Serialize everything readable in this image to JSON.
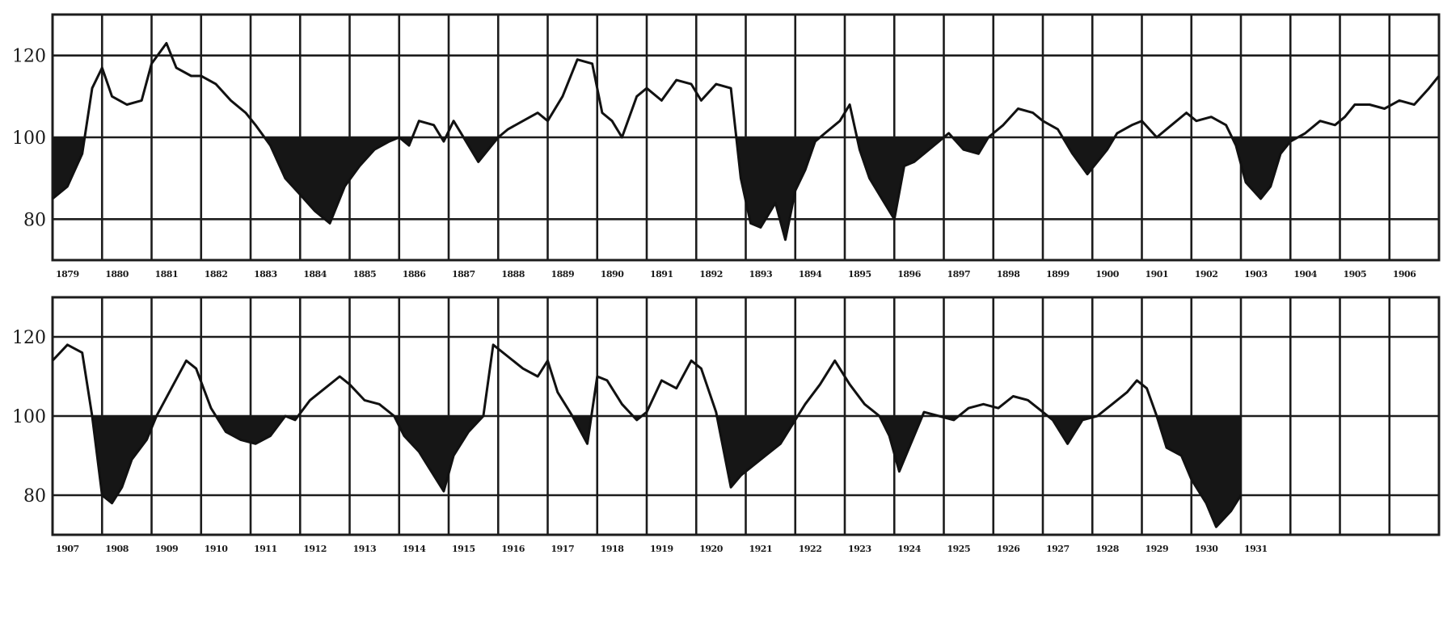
{
  "chart_data": [
    {
      "type": "line",
      "panel": "top",
      "x_start": 1879,
      "x_end": 1907,
      "ylim": [
        70,
        130
      ],
      "yticks": [
        80,
        100,
        120
      ],
      "xtick_labels": [
        "1879",
        "1880",
        "1881",
        "1882",
        "1883",
        "1884",
        "1885",
        "1886",
        "1887",
        "1888",
        "1889",
        "1890",
        "1891",
        "1892",
        "1893",
        "1894",
        "1895",
        "1896",
        "1897",
        "1898",
        "1899",
        "1900",
        "1901",
        "1902",
        "1903",
        "1904",
        "1905",
        "1906"
      ],
      "grid": true,
      "baseline": 100,
      "x": [
        1879.0,
        1879.3,
        1879.6,
        1879.8,
        1880.0,
        1880.2,
        1880.5,
        1880.8,
        1881.0,
        1881.3,
        1881.5,
        1881.8,
        1882.0,
        1882.3,
        1882.6,
        1882.9,
        1883.1,
        1883.4,
        1883.7,
        1884.0,
        1884.3,
        1884.6,
        1884.9,
        1885.2,
        1885.5,
        1885.8,
        1886.0,
        1886.2,
        1886.4,
        1886.7,
        1886.9,
        1887.1,
        1887.3,
        1887.6,
        1887.8,
        1888.0,
        1888.2,
        1888.5,
        1888.8,
        1889.0,
        1889.3,
        1889.6,
        1889.9,
        1890.1,
        1890.3,
        1890.5,
        1890.8,
        1891.0,
        1891.3,
        1891.6,
        1891.9,
        1892.1,
        1892.4,
        1892.7,
        1892.9,
        1893.1,
        1893.3,
        1893.6,
        1893.8,
        1894.0,
        1894.2,
        1894.4,
        1894.6,
        1894.9,
        1895.1,
        1895.3,
        1895.5,
        1895.8,
        1896.0,
        1896.2,
        1896.4,
        1896.7,
        1896.9,
        1897.1,
        1897.4,
        1897.7,
        1897.9,
        1898.2,
        1898.5,
        1898.8,
        1899.0,
        1899.3,
        1899.6,
        1899.9,
        1900.1,
        1900.3,
        1900.5,
        1900.8,
        1901.0,
        1901.3,
        1901.6,
        1901.9,
        1902.1,
        1902.4,
        1902.7,
        1902.9,
        1903.1,
        1903.4,
        1903.6,
        1903.8,
        1904.0,
        1904.3,
        1904.6,
        1904.9,
        1905.1,
        1905.3,
        1905.6,
        1905.9,
        1906.2,
        1906.5,
        1906.8,
        1907.0
      ],
      "values": [
        85,
        88,
        96,
        112,
        117,
        110,
        108,
        109,
        118,
        123,
        117,
        115,
        115,
        113,
        109,
        106,
        103,
        98,
        90,
        86,
        82,
        79,
        88,
        93,
        97,
        99,
        100,
        98,
        104,
        103,
        99,
        104,
        100,
        94,
        97,
        100,
        102,
        104,
        106,
        104,
        110,
        119,
        118,
        106,
        104,
        100,
        110,
        112,
        109,
        114,
        113,
        109,
        113,
        112,
        90,
        79,
        78,
        84,
        75,
        87,
        92,
        99,
        101,
        104,
        108,
        97,
        90,
        84,
        80,
        93,
        94,
        97,
        99,
        101,
        97,
        96,
        100,
        103,
        107,
        106,
        104,
        102,
        96,
        91,
        94,
        97,
        101,
        103,
        104,
        100,
        103,
        106,
        104,
        105,
        103,
        98,
        89,
        85,
        88,
        96,
        99,
        101,
        104,
        103,
        105,
        108,
        108,
        107,
        109,
        108,
        112,
        115
      ]
    },
    {
      "type": "line",
      "panel": "bottom",
      "x_start": 1907,
      "x_end": 1935,
      "ylim": [
        70,
        130
      ],
      "yticks": [
        80,
        100,
        120
      ],
      "xtick_labels": [
        "1907",
        "1908",
        "1909",
        "1910",
        "1911",
        "1912",
        "1913",
        "1914",
        "1915",
        "1916",
        "1917",
        "1918",
        "1919",
        "1920",
        "1921",
        "1922",
        "1923",
        "1924",
        "1925",
        "1926",
        "1927",
        "1928",
        "1929",
        "1930",
        "1931"
      ],
      "grid": true,
      "baseline": 100,
      "x": [
        1907.0,
        1907.3,
        1907.6,
        1907.8,
        1908.0,
        1908.2,
        1908.4,
        1908.6,
        1908.9,
        1909.1,
        1909.4,
        1909.7,
        1909.9,
        1910.2,
        1910.5,
        1910.8,
        1911.1,
        1911.4,
        1911.7,
        1911.9,
        1912.2,
        1912.5,
        1912.8,
        1913.0,
        1913.3,
        1913.6,
        1913.9,
        1914.1,
        1914.4,
        1914.6,
        1914.9,
        1915.1,
        1915.4,
        1915.7,
        1915.9,
        1916.2,
        1916.5,
        1916.8,
        1917.0,
        1917.2,
        1917.5,
        1917.8,
        1918.0,
        1918.2,
        1918.5,
        1918.8,
        1919.0,
        1919.3,
        1919.6,
        1919.9,
        1920.1,
        1920.4,
        1920.7,
        1920.9,
        1921.1,
        1921.4,
        1921.7,
        1921.9,
        1922.2,
        1922.5,
        1922.8,
        1923.1,
        1923.4,
        1923.7,
        1923.9,
        1924.1,
        1924.3,
        1924.6,
        1924.9,
        1925.2,
        1925.5,
        1925.8,
        1926.1,
        1926.4,
        1926.7,
        1926.9,
        1927.2,
        1927.5,
        1927.8,
        1928.1,
        1928.4,
        1928.7,
        1928.9,
        1929.1,
        1929.3,
        1929.5,
        1929.8,
        1930.0,
        1930.3,
        1930.5,
        1930.8,
        1931.0
      ],
      "values": [
        114,
        118,
        116,
        100,
        80,
        78,
        82,
        89,
        94,
        100,
        107,
        114,
        112,
        102,
        96,
        94,
        93,
        95,
        100,
        99,
        104,
        107,
        110,
        108,
        104,
        103,
        100,
        95,
        91,
        87,
        81,
        90,
        96,
        100,
        118,
        115,
        112,
        110,
        114,
        106,
        100,
        93,
        110,
        109,
        103,
        99,
        101,
        109,
        107,
        114,
        112,
        101,
        82,
        85,
        87,
        90,
        93,
        97,
        103,
        108,
        114,
        108,
        103,
        100,
        95,
        86,
        92,
        101,
        100,
        99,
        102,
        103,
        102,
        105,
        104,
        102,
        99,
        93,
        99,
        100,
        103,
        106,
        109,
        107,
        100,
        92,
        90,
        84,
        78,
        72,
        76,
        80
      ]
    }
  ]
}
